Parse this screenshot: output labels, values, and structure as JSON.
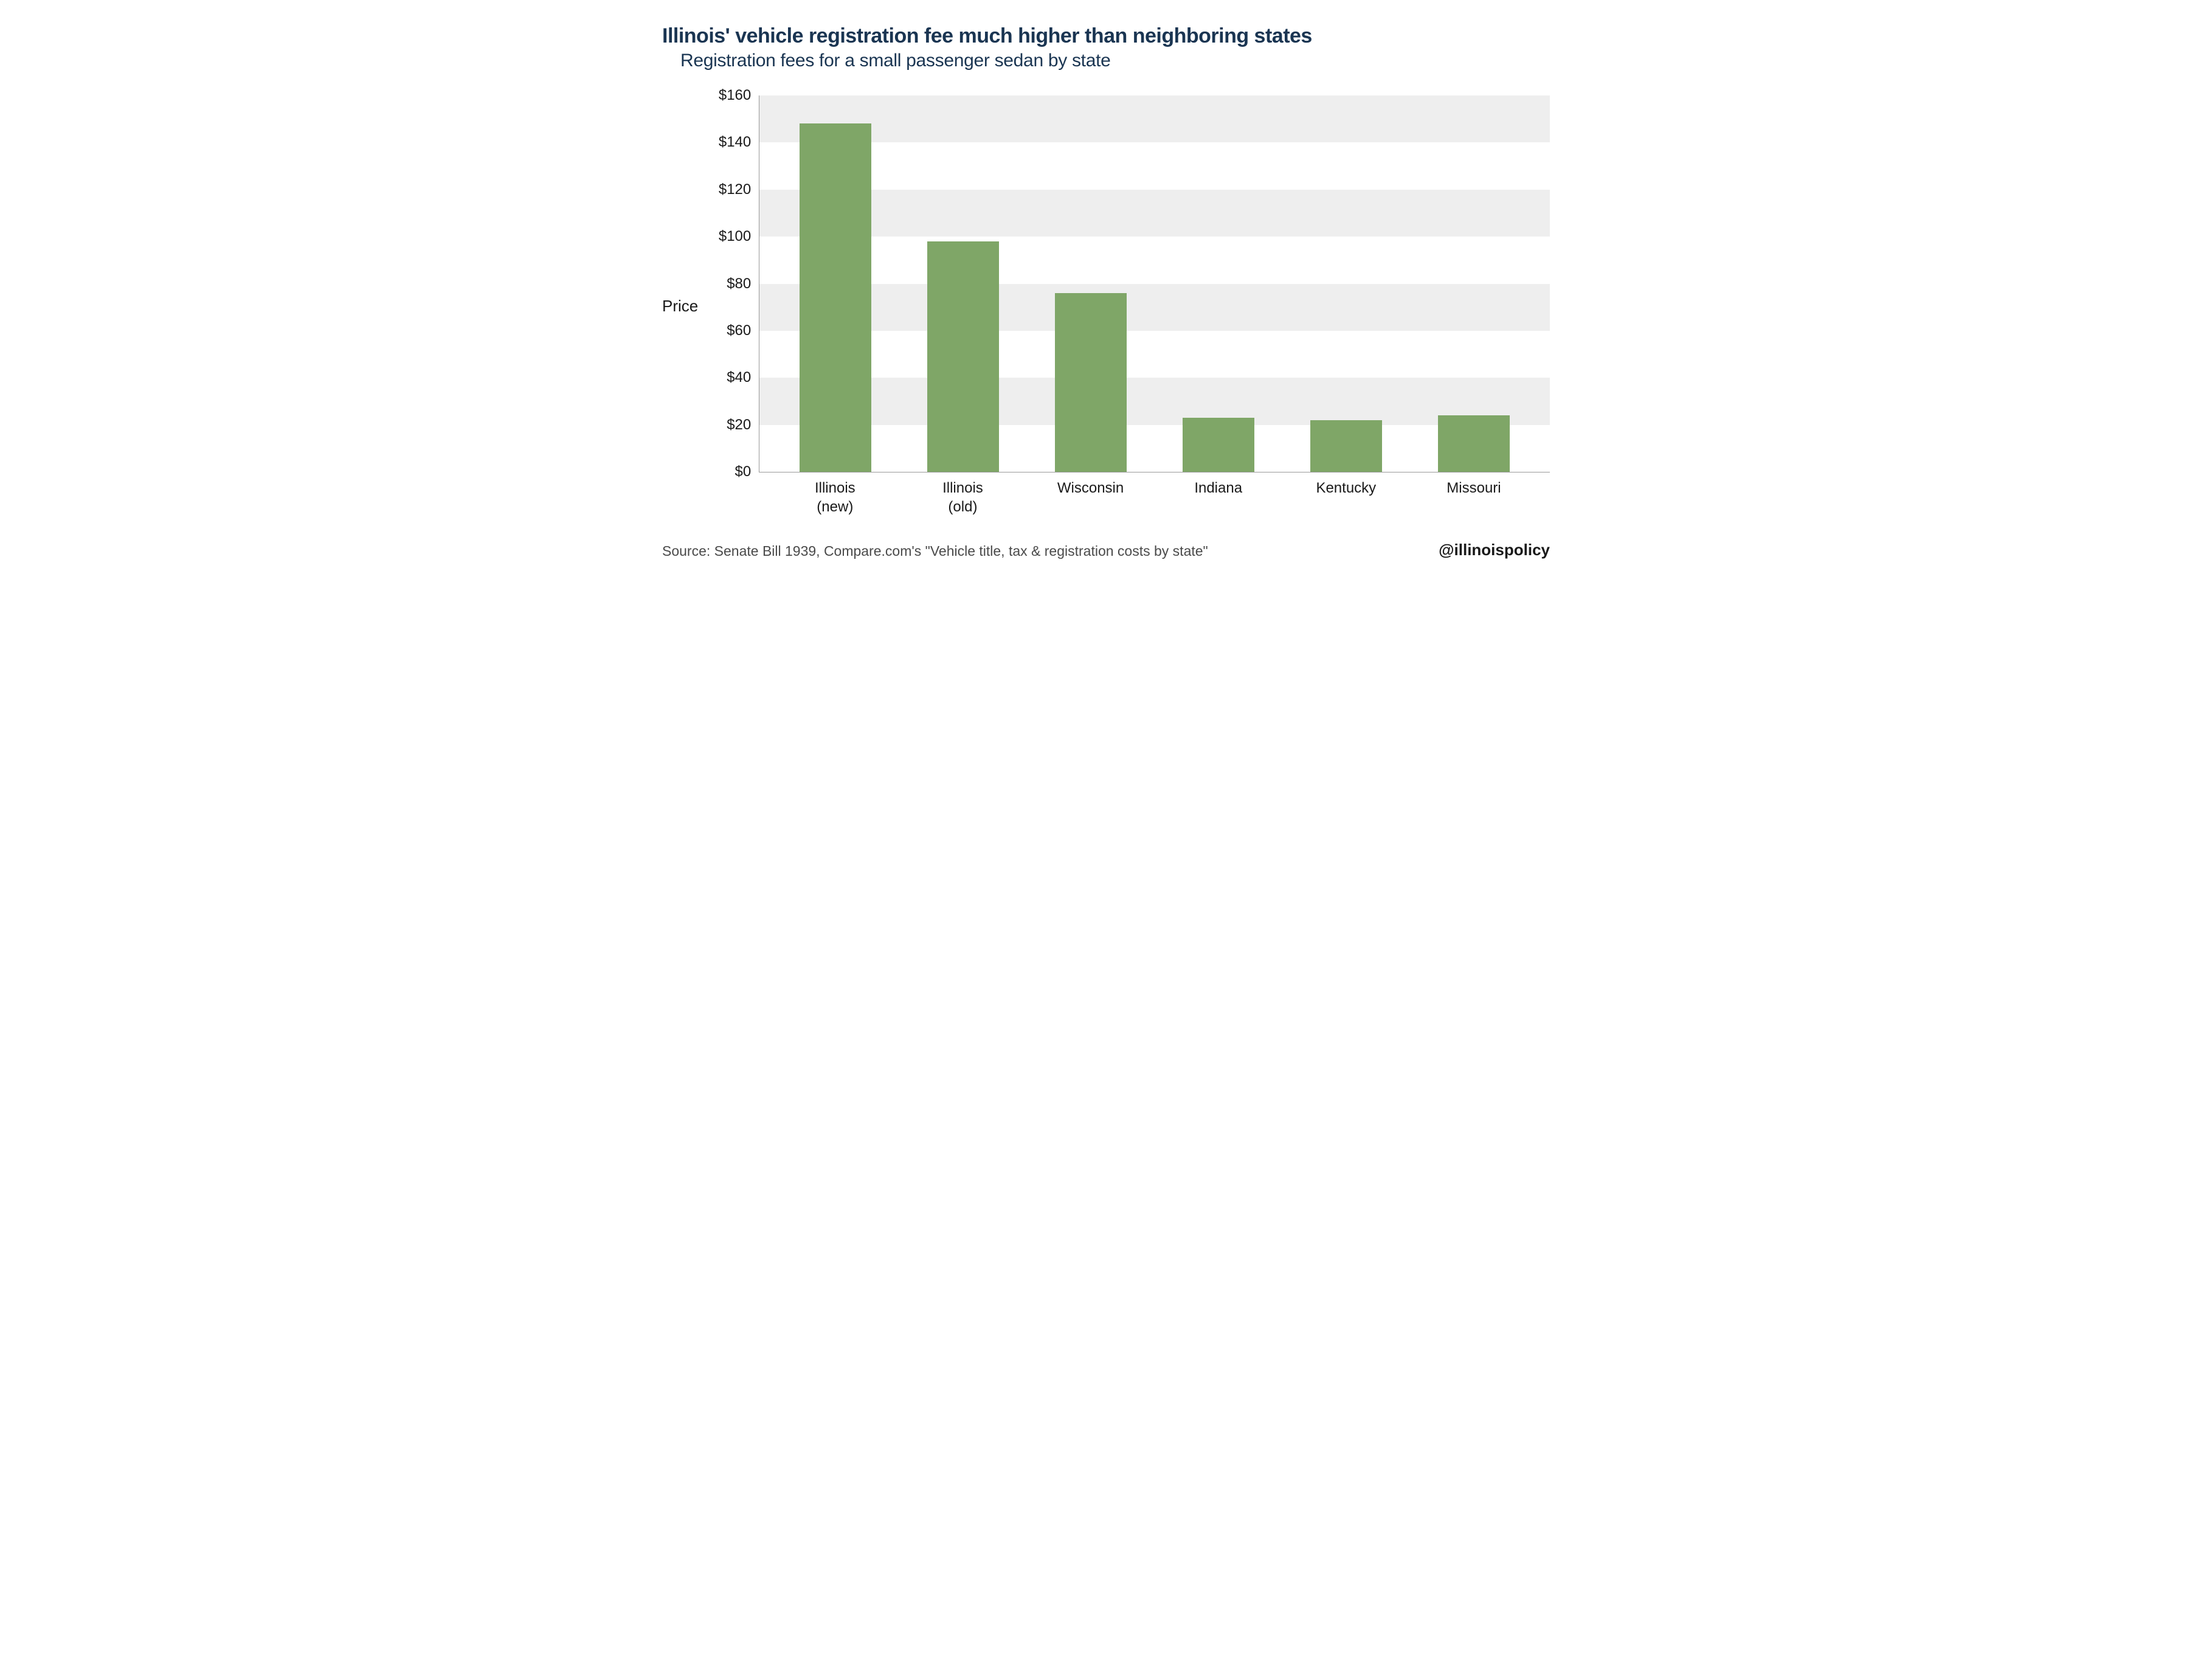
{
  "title": "Illinois' vehicle registration fee much higher than neighboring states",
  "subtitle": "Registration fees for a small passenger sedan by state",
  "chart": {
    "type": "bar",
    "ylabel": "Price",
    "ylim": [
      0,
      160
    ],
    "ytick_step": 20,
    "ytick_prefix": "$",
    "bar_color": "#7fa667",
    "band_color": "#eeeeee",
    "background_color": "#ffffff",
    "axis_color": "#9a9a9a",
    "bar_width_ratio": 0.56,
    "categories": [
      "Illinois\n(new)",
      "Illinois\n(old)",
      "Wisconsin",
      "Indiana",
      "Kentucky",
      "Missouri"
    ],
    "values": [
      148,
      98,
      76,
      23,
      22,
      24
    ]
  },
  "footer": {
    "source": "Source: Senate Bill 1939, Compare.com's \"Vehicle title, tax & registration costs by state\"",
    "handle": "@illinoispolicy"
  },
  "typography": {
    "title_fontsize": 34,
    "subtitle_fontsize": 30,
    "tick_fontsize": 24,
    "ylabel_fontsize": 26,
    "source_fontsize": 23,
    "handle_fontsize": 26,
    "title_color": "#1a3552",
    "text_color": "#1a1a1a",
    "source_color": "#4a4a4a"
  }
}
